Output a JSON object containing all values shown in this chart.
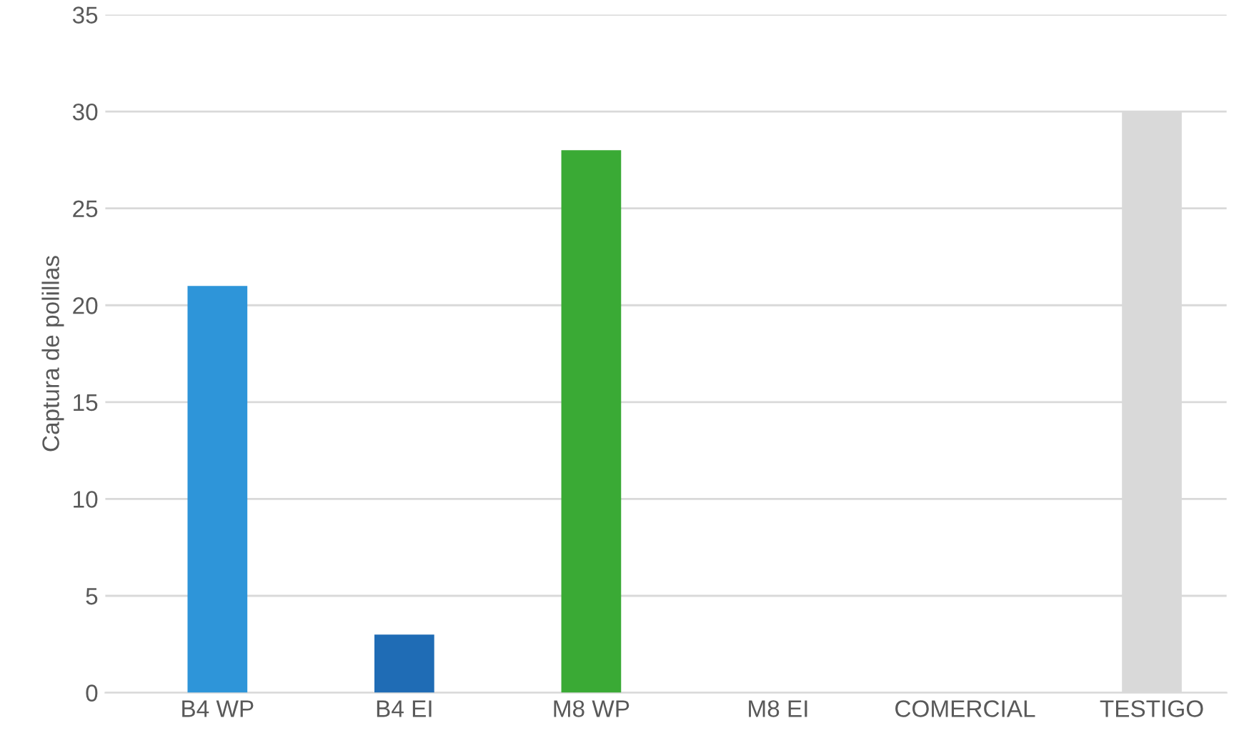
{
  "chart_data": {
    "type": "bar",
    "ylabel": "Captura de polillas",
    "categories": [
      "B4 WP",
      "B4 EI",
      "M8 WP",
      "M8 EI",
      "COMERCIAL",
      "TESTIGO"
    ],
    "values": [
      21,
      3,
      28,
      0,
      0,
      30
    ],
    "colors": [
      "#2e95d9",
      "#1f6cb5",
      "#3aaa35",
      "#8fc460",
      "#a5a5a5",
      "#d9d9d9"
    ],
    "ylim": [
      0,
      35
    ],
    "yticks": [
      0,
      5,
      10,
      15,
      20,
      25,
      30,
      35
    ],
    "grid": "y"
  }
}
